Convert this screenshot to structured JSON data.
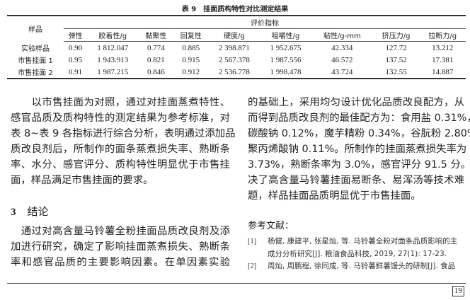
{
  "table": {
    "caption": "表 9　挂面质构特性对比测定结果",
    "sample_header": "样品",
    "group_header": "评价指标",
    "columns": [
      "弹性",
      "胶着性/g",
      "黏聚性",
      "回复性",
      "硬度/g",
      "咀嚼性/g",
      "粘性/g-mm",
      "挤压力/g",
      "拉断力/g"
    ],
    "rows": [
      {
        "name": "实验样品",
        "values": [
          "0.90",
          "1 812.047",
          "0.774",
          "0.885",
          "2 398.871",
          "1 952.675",
          "42.334",
          "127.72",
          "13.212"
        ]
      },
      {
        "name": "市售挂面 1",
        "values": [
          "0.95",
          "1 943.913",
          "0.821",
          "0.915",
          "2 567.378",
          "1 987.556",
          "46.572",
          "137.52",
          "17.381"
        ]
      },
      {
        "name": "市售挂面 2",
        "values": [
          "0.91",
          "1 987.215",
          "0.846",
          "0.912",
          "2 536.778",
          "1 998.478",
          "43.724",
          "132.55",
          "14.887"
        ]
      }
    ]
  },
  "left_paragraph1": [
    "　　以市售挂面为对照，通过对挂面蒸煮特性、",
    "感官品质及质构特性的测定结果为参考标准，对",
    "表 8~表 9 各指标进行综合分析，表明通过添加品",
    "质改良剂后，所制作的面条蒸煮损失率、熟断条",
    "率、水分、感官评分、质构特性明显优于市售挂",
    "面，样品满足市售挂面的要求。"
  ],
  "section": {
    "number": "3",
    "title": "结论"
  },
  "left_paragraph2": [
    "　通过对高含量马铃薯全粉挂面品质改良剂及添",
    "加进行研究，确定了影响挂面蒸煮损失、熟断条",
    "率和感官品质的主要影响因素。在单因素实验"
  ],
  "right_paragraph": [
    "的基础上，采用均匀设计优化品质改良配方，从",
    "而得到品质改良剂的最佳配方为：食用盐 0.31%，",
    "碳酸钠 0.12%，魔芋精粉 0.34%，谷朊粉 2.80%，",
    "聚丙烯酸钠  0.11%。所制作的挂面蒸煮损失率为",
    "3.73%，熟断条率为 3.0%，感官评分 91.5 分。解",
    "决了高含量马铃薯挂面易断条、易浑汤等技术难",
    "题，样品挂面品质明显优于市售挂面。"
  ],
  "references_heading": "参考文献：",
  "references": [
    {
      "no": "[1]",
      "text": "杨健, 康建平, 张星灿, 等. 马铃薯全粉对面条品质影响的主成分分析研究[J]. 粮油食品科技, 2019, 27(1): 17-23."
    },
    {
      "no": "[2]",
      "text": "周灿, 周鹏程, 徐同成, 等. 马铃薯鲜薯馒头的研制[J]. 食品"
    }
  ],
  "page_number": "19"
}
